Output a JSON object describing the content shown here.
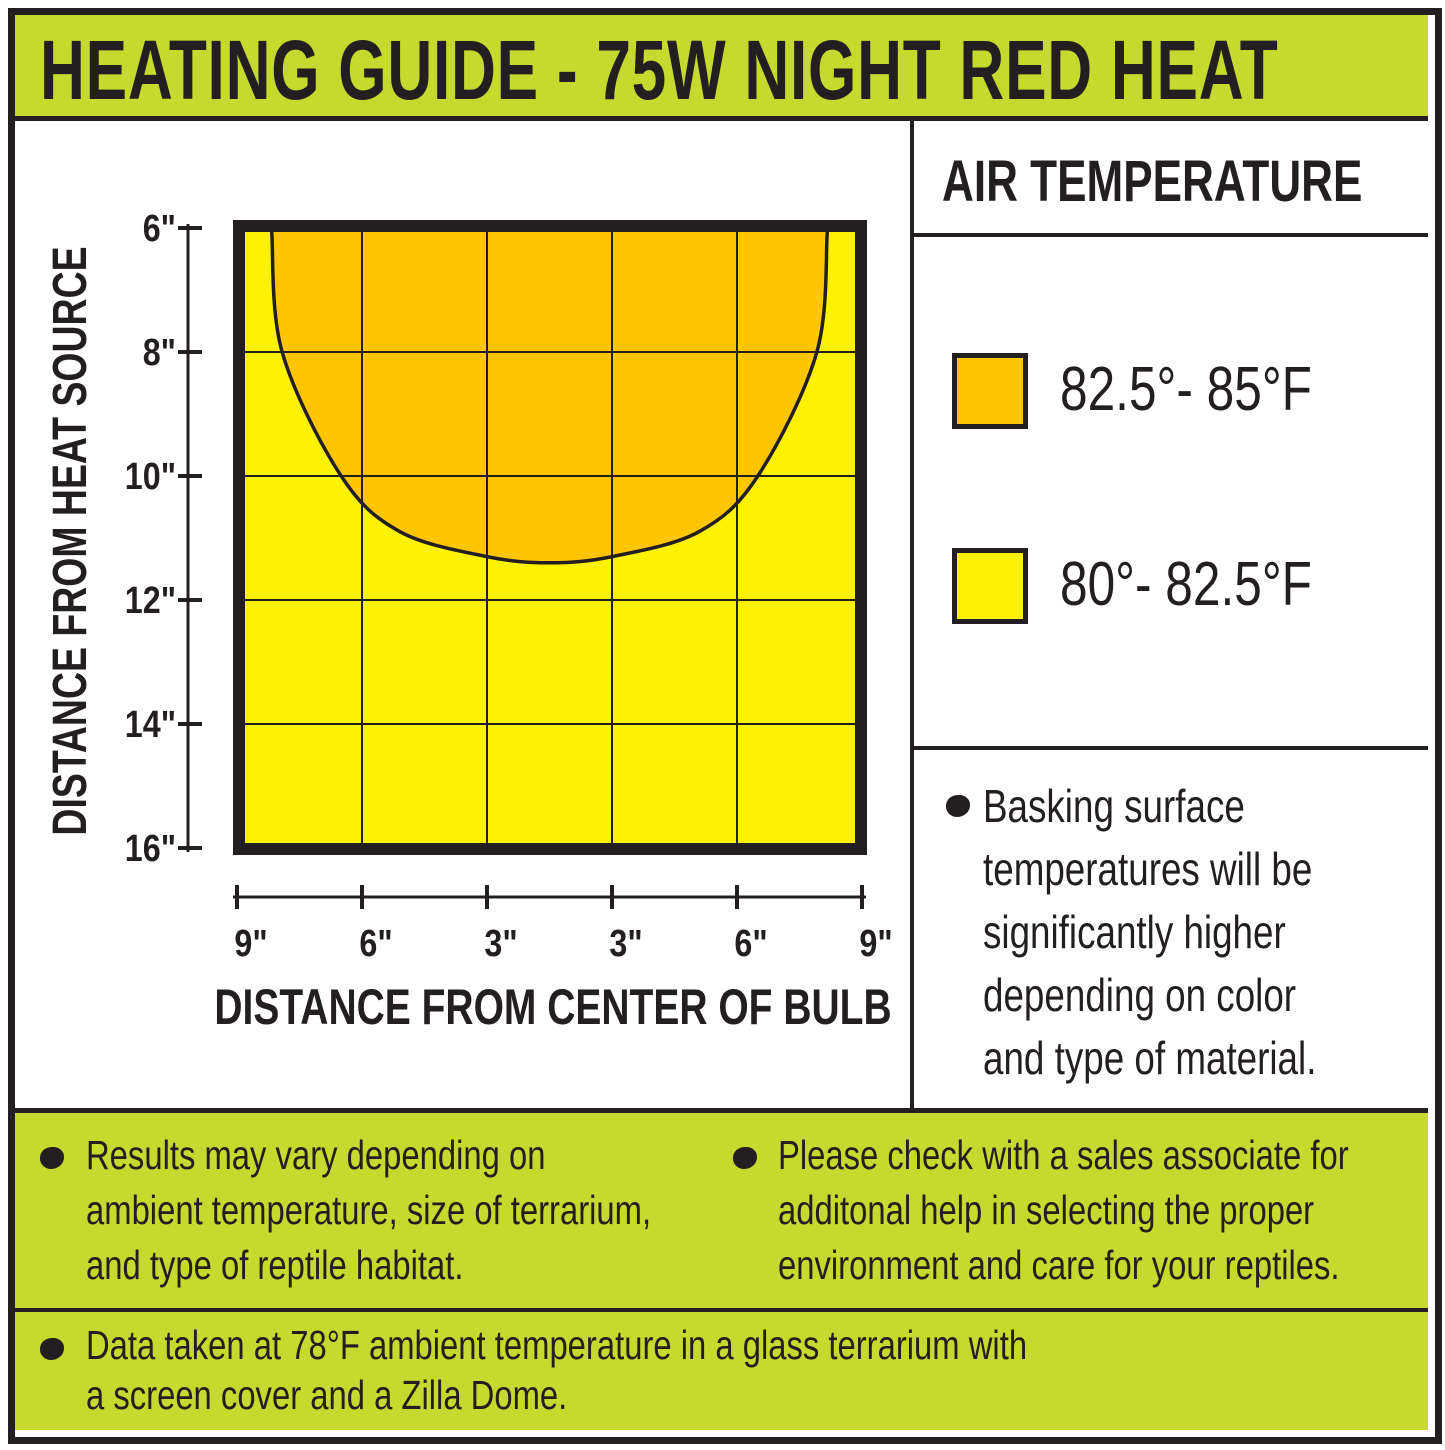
{
  "header": {
    "title": "HEATING GUIDE - 75W NIGHT RED HEAT"
  },
  "colors": {
    "band": "#c5d92e",
    "hot_zone": "#ffc600",
    "warm_zone": "#fff200",
    "ink": "#231f20"
  },
  "legend": {
    "title": "AIR TEMPERATURE",
    "items": [
      {
        "label": "82.5°- 85°F",
        "color": "#ffc600"
      },
      {
        "label": "80°- 82.5°F",
        "color": "#fff200"
      }
    ]
  },
  "side_note": {
    "lines": [
      "Basking surface",
      "temperatures will be",
      "significantly higher",
      "depending on color",
      "and type of material."
    ]
  },
  "footer": {
    "left_lines": [
      "Results may vary depending on",
      "ambient temperature, size of terrarium,",
      "and type of reptile habitat."
    ],
    "right_lines": [
      "Please check with a sales associate for",
      "additonal help in selecting the proper",
      "environment and care for your reptiles."
    ],
    "bottom_lines": [
      "Data taken at 78°F ambient temperature in a glass terrarium with",
      "a screen cover and a Zilla Dome."
    ]
  },
  "chart_data": {
    "type": "area",
    "xlabel": "DISTANCE FROM CENTER OF BULB",
    "ylabel": "DISTANCE FROM HEAT SOURCE",
    "x_tick_labels": [
      "9\"",
      "6\"",
      "3\"",
      "3\"",
      "6\"",
      "9\""
    ],
    "y_tick_labels": [
      "6\"",
      "8\"",
      "10\"",
      "12\"",
      "14\"",
      "16\""
    ],
    "xlim": [
      -9,
      9
    ],
    "ylim": [
      6,
      16
    ],
    "y_inverted": true,
    "grid": true,
    "background_zone": "80°- 82.5°F",
    "zones": [
      {
        "name": "82.5°- 85°F",
        "boundary_x": [
          -8,
          -7.7,
          -6,
          -4.3,
          -1.8,
          0,
          1.8,
          4.3,
          6,
          7.7,
          8
        ],
        "boundary_y": [
          6,
          8,
          10,
          10.9,
          11.3,
          11.4,
          11.3,
          10.9,
          10,
          8,
          6
        ]
      }
    ]
  }
}
